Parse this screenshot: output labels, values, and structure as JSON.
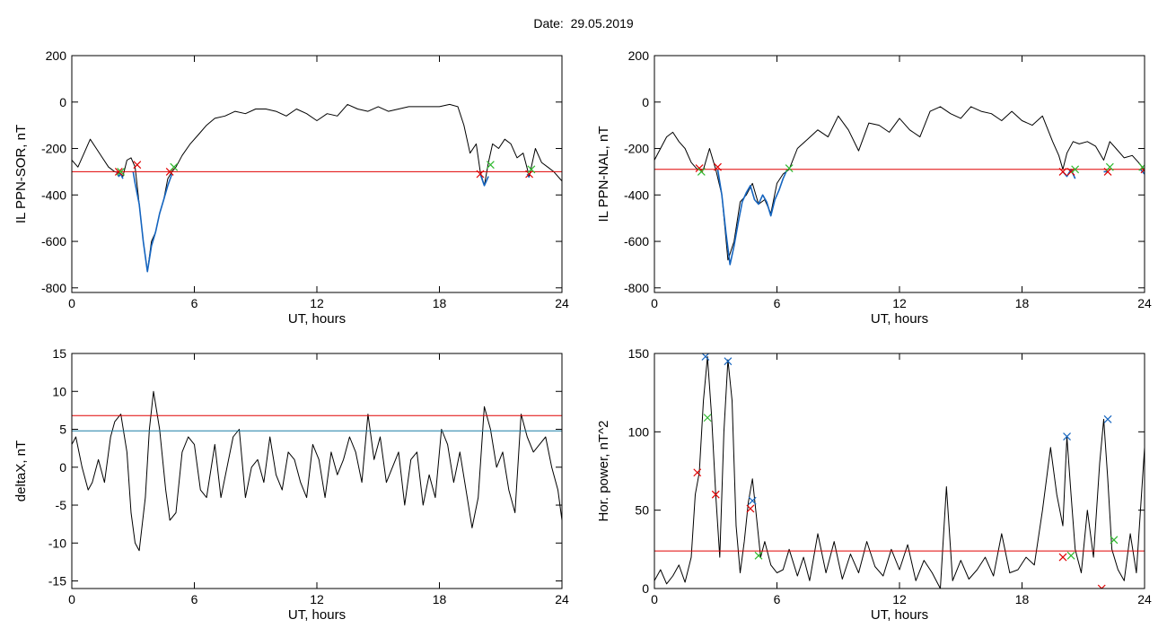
{
  "page": {
    "title": "Date:  29.05.2019"
  },
  "chart_data": [
    {
      "id": "il_sor",
      "type": "line",
      "ylabel": "IL PPN-SOR, nT",
      "xlabel": "UT, hours",
      "xlim": [
        0,
        24
      ],
      "ylim": [
        -820,
        200
      ],
      "xticks": [
        0,
        6,
        12,
        18,
        24
      ],
      "yticks": [
        200,
        0,
        -200,
        -400,
        -600,
        -800
      ],
      "series": [
        {
          "color": "#000000",
          "x": [
            0,
            0.3,
            0.6,
            0.9,
            1.2,
            1.5,
            1.8,
            2.1,
            2.3,
            2.5,
            2.7,
            2.9,
            3.1,
            3.3,
            3.5,
            3.7,
            3.9,
            4.1,
            4.3,
            4.5,
            4.7,
            4.9,
            5.1,
            5.4,
            5.8,
            6.2,
            6.6,
            7.0,
            7.5,
            8.0,
            8.5,
            9.0,
            9.5,
            10,
            10.5,
            11,
            11.5,
            12,
            12.5,
            13,
            13.5,
            14,
            14.5,
            15,
            15.5,
            16,
            16.5,
            17,
            17.5,
            18,
            18.5,
            18.9,
            19.2,
            19.5,
            19.8,
            20.0,
            20.2,
            20.4,
            20.6,
            20.9,
            21.2,
            21.5,
            21.8,
            22.1,
            22.4,
            22.7,
            23.0,
            23.3,
            23.6,
            24
          ],
          "y": [
            -250,
            -280,
            -220,
            -160,
            -200,
            -240,
            -280,
            -300,
            -305,
            -320,
            -250,
            -240,
            -280,
            -440,
            -600,
            -730,
            -600,
            -560,
            -480,
            -420,
            -330,
            -300,
            -280,
            -230,
            -180,
            -140,
            -100,
            -70,
            -60,
            -40,
            -50,
            -30,
            -30,
            -40,
            -60,
            -30,
            -50,
            -80,
            -50,
            -60,
            -10,
            -30,
            -40,
            -20,
            -40,
            -30,
            -20,
            -20,
            -20,
            -20,
            -10,
            -20,
            -100,
            -220,
            -180,
            -300,
            -360,
            -260,
            -180,
            -200,
            -160,
            -180,
            -240,
            -220,
            -320,
            -200,
            -260,
            -280,
            -300,
            -340
          ]
        },
        {
          "color": "#1565c0",
          "x": [
            2.2,
            2.3,
            2.4,
            2.5
          ],
          "y": [
            -300,
            -320,
            -310,
            -330
          ]
        },
        {
          "color": "#1565c0",
          "x": [
            3.0,
            3.1,
            3.3,
            3.5,
            3.7,
            3.9,
            4.1,
            4.3,
            4.5,
            4.7,
            4.9
          ],
          "y": [
            -300,
            -350,
            -440,
            -600,
            -730,
            -620,
            -560,
            -480,
            -420,
            -360,
            -310
          ]
        },
        {
          "color": "#1565c0",
          "x": [
            20.0,
            20.2,
            20.4
          ],
          "y": [
            -310,
            -360,
            -320
          ]
        },
        {
          "color": "#1565c0",
          "x": [
            22.3,
            22.4
          ],
          "y": [
            -310,
            -325
          ]
        },
        {
          "color": "#e00000",
          "x": [
            0,
            24
          ],
          "y": [
            -300,
            -300
          ]
        }
      ],
      "markers": [
        {
          "color": "#e00000",
          "x": [
            2.3,
            3.2,
            4.8,
            20.0,
            22.4
          ],
          "y": [
            -300,
            -270,
            -300,
            -310,
            -310
          ]
        },
        {
          "color": "#2eb82e",
          "x": [
            2.4,
            5.0,
            20.5,
            22.5
          ],
          "y": [
            -300,
            -280,
            -270,
            -290
          ]
        }
      ]
    },
    {
      "id": "il_nal",
      "type": "line",
      "ylabel": "IL PPN-NAL, nT",
      "xlabel": "UT, hours",
      "xlim": [
        0,
        24
      ],
      "ylim": [
        -820,
        200
      ],
      "xticks": [
        0,
        6,
        12,
        18,
        24
      ],
      "yticks": [
        200,
        0,
        -200,
        -400,
        -600,
        -800
      ],
      "series": [
        {
          "color": "#000000",
          "x": [
            0,
            0.3,
            0.6,
            0.9,
            1.2,
            1.5,
            1.8,
            2.1,
            2.4,
            2.7,
            3.0,
            3.3,
            3.6,
            3.9,
            4.2,
            4.5,
            4.8,
            5.1,
            5.4,
            5.7,
            6.0,
            6.3,
            6.6,
            7.0,
            7.5,
            8.0,
            8.5,
            9.0,
            9.5,
            10,
            10.5,
            11,
            11.5,
            12,
            12.5,
            13,
            13.5,
            14,
            14.5,
            15,
            15.5,
            16,
            16.5,
            17,
            17.5,
            18,
            18.5,
            19,
            19.5,
            19.8,
            20.0,
            20.2,
            20.5,
            20.8,
            21.2,
            21.6,
            22.0,
            22.3,
            22.6,
            23.0,
            23.4,
            23.8,
            24
          ],
          "y": [
            -250,
            -200,
            -150,
            -130,
            -170,
            -200,
            -260,
            -290,
            -290,
            -200,
            -290,
            -400,
            -680,
            -600,
            -430,
            -400,
            -350,
            -440,
            -420,
            -480,
            -350,
            -310,
            -290,
            -200,
            -160,
            -120,
            -150,
            -60,
            -120,
            -210,
            -90,
            -100,
            -130,
            -70,
            -120,
            -150,
            -40,
            -20,
            -50,
            -70,
            -20,
            -40,
            -50,
            -80,
            -40,
            -80,
            -100,
            -60,
            -170,
            -230,
            -290,
            -220,
            -170,
            -180,
            -170,
            -190,
            -250,
            -170,
            -200,
            -240,
            -230,
            -270,
            -300
          ]
        },
        {
          "color": "#1565c0",
          "x": [
            3.1,
            3.3,
            3.5,
            3.7,
            3.9,
            4.1,
            4.3,
            4.5,
            4.7,
            4.9,
            5.1,
            5.3,
            5.5,
            5.7,
            5.9,
            6.1,
            6.3,
            6.5
          ],
          "y": [
            -290,
            -400,
            -560,
            -700,
            -620,
            -520,
            -430,
            -390,
            -360,
            -420,
            -440,
            -400,
            -430,
            -490,
            -420,
            -380,
            -330,
            -290
          ]
        },
        {
          "color": "#1565c0",
          "x": [
            20.0,
            20.2,
            20.4,
            20.6
          ],
          "y": [
            -300,
            -320,
            -290,
            -330
          ]
        },
        {
          "color": "#1565c0",
          "x": [
            22.0,
            22.2
          ],
          "y": [
            -300,
            -300
          ]
        },
        {
          "color": "#1565c0",
          "x": [
            23.8,
            24.0
          ],
          "y": [
            -290,
            -310
          ]
        },
        {
          "color": "#e00000",
          "x": [
            0,
            24
          ],
          "y": [
            -290,
            -290
          ]
        }
      ],
      "markers": [
        {
          "color": "#e00000",
          "x": [
            2.2,
            3.1,
            20.0,
            20.4,
            22.2,
            24
          ],
          "y": [
            -285,
            -280,
            -300,
            -300,
            -300,
            -290
          ]
        },
        {
          "color": "#2eb82e",
          "x": [
            2.3,
            6.6,
            20.6,
            22.3,
            23.9
          ],
          "y": [
            -300,
            -285,
            -290,
            -280,
            -280
          ]
        }
      ]
    },
    {
      "id": "deltax",
      "type": "line",
      "ylabel": "deltaX, nT",
      "xlabel": "UT, hours",
      "xlim": [
        0,
        24
      ],
      "ylim": [
        -16,
        15
      ],
      "xticks": [
        0,
        6,
        12,
        18,
        24
      ],
      "yticks": [
        15,
        10,
        5,
        0,
        -5,
        -10,
        -15
      ],
      "series": [
        {
          "color": "#000000",
          "x": [
            0,
            0.2,
            0.5,
            0.8,
            1.0,
            1.3,
            1.6,
            1.9,
            2.1,
            2.4,
            2.7,
            2.9,
            3.1,
            3.3,
            3.6,
            3.8,
            4.0,
            4.3,
            4.6,
            4.8,
            5.1,
            5.4,
            5.7,
            6.0,
            6.3,
            6.6,
            7.0,
            7.3,
            7.6,
            7.9,
            8.2,
            8.5,
            8.8,
            9.1,
            9.4,
            9.7,
            10.0,
            10.3,
            10.6,
            10.9,
            11.2,
            11.5,
            11.8,
            12.1,
            12.4,
            12.7,
            13.0,
            13.3,
            13.6,
            13.9,
            14.2,
            14.5,
            14.8,
            15.1,
            15.4,
            15.7,
            16.0,
            16.3,
            16.6,
            16.9,
            17.2,
            17.5,
            17.8,
            18.1,
            18.4,
            18.7,
            19.0,
            19.3,
            19.6,
            19.9,
            20.2,
            20.5,
            20.8,
            21.1,
            21.4,
            21.7,
            22.0,
            22.3,
            22.6,
            22.9,
            23.2,
            23.5,
            23.8,
            24
          ],
          "y": [
            3,
            4,
            0,
            -3,
            -2,
            1,
            -2,
            4,
            6,
            7,
            2,
            -6,
            -10,
            -11,
            -4,
            5,
            10,
            5,
            -3,
            -7,
            -6,
            2,
            4,
            3,
            -3,
            -4,
            3,
            -4,
            0,
            4,
            5,
            -4,
            0,
            1,
            -2,
            4,
            -1,
            -3,
            2,
            1,
            -2,
            -4,
            3,
            1,
            -4,
            2,
            -1,
            1,
            4,
            2,
            -2,
            7,
            1,
            4,
            -2,
            0,
            2,
            -5,
            1,
            2,
            -5,
            -1,
            -4,
            5,
            3,
            -2,
            2,
            -3,
            -8,
            -4,
            8,
            5,
            0,
            2,
            -3,
            -6,
            7,
            4,
            2,
            3,
            4,
            0,
            -3,
            -7
          ]
        },
        {
          "color": "#e00000",
          "x": [
            0,
            24
          ],
          "y": [
            6.8,
            6.8
          ]
        },
        {
          "color": "#1a7fa6",
          "x": [
            0,
            24
          ],
          "y": [
            4.8,
            4.8
          ]
        }
      ],
      "markers": []
    },
    {
      "id": "hor_power",
      "type": "line",
      "ylabel": "Hor. power, nT^2",
      "xlabel": "UT, hours",
      "xlim": [
        0,
        24
      ],
      "ylim": [
        0,
        150
      ],
      "xticks": [
        0,
        6,
        12,
        18,
        24
      ],
      "yticks": [
        150,
        100,
        50,
        0
      ],
      "series": [
        {
          "color": "#000000",
          "x": [
            0,
            0.3,
            0.6,
            0.9,
            1.2,
            1.5,
            1.8,
            2.0,
            2.2,
            2.4,
            2.6,
            2.8,
            3.0,
            3.2,
            3.4,
            3.6,
            3.8,
            4.0,
            4.2,
            4.4,
            4.6,
            4.8,
            5.0,
            5.2,
            5.4,
            5.7,
            6.0,
            6.3,
            6.6,
            7.0,
            7.3,
            7.6,
            8.0,
            8.4,
            8.8,
            9.2,
            9.6,
            10.0,
            10.4,
            10.8,
            11.2,
            11.6,
            12.0,
            12.4,
            12.8,
            13.2,
            13.6,
            14.0,
            14.3,
            14.6,
            15.0,
            15.4,
            15.8,
            16.2,
            16.6,
            17.0,
            17.4,
            17.8,
            18.2,
            18.6,
            19.0,
            19.4,
            19.7,
            20.0,
            20.2,
            20.4,
            20.6,
            20.9,
            21.2,
            21.5,
            21.8,
            22.0,
            22.2,
            22.4,
            22.7,
            23.0,
            23.3,
            23.6,
            24
          ],
          "y": [
            5,
            12,
            3,
            8,
            15,
            4,
            20,
            60,
            74,
            120,
            148,
            110,
            60,
            20,
            100,
            146,
            120,
            40,
            10,
            30,
            55,
            70,
            45,
            20,
            30,
            15,
            10,
            12,
            25,
            8,
            20,
            5,
            35,
            10,
            30,
            6,
            22,
            10,
            30,
            14,
            8,
            25,
            12,
            28,
            5,
            18,
            10,
            0,
            65,
            5,
            18,
            6,
            12,
            20,
            8,
            35,
            10,
            12,
            20,
            15,
            50,
            90,
            60,
            40,
            97,
            60,
            25,
            10,
            50,
            20,
            80,
            108,
            70,
            25,
            12,
            5,
            35,
            10,
            90
          ]
        },
        {
          "color": "#e00000",
          "x": [
            0,
            24
          ],
          "y": [
            24,
            24
          ]
        }
      ],
      "markers": [
        {
          "color": "#e00000",
          "x": [
            2.1,
            3.0,
            4.7,
            20.0,
            21.9
          ],
          "y": [
            74,
            60,
            51,
            20,
            0
          ]
        },
        {
          "color": "#2eb82e",
          "x": [
            2.6,
            5.1,
            20.4,
            22.5
          ],
          "y": [
            109,
            21,
            21,
            31
          ]
        },
        {
          "color": "#1565c0",
          "x": [
            2.5,
            3.6,
            4.8,
            20.2,
            22.2
          ],
          "y": [
            148,
            145,
            56,
            97,
            108
          ]
        }
      ]
    }
  ]
}
